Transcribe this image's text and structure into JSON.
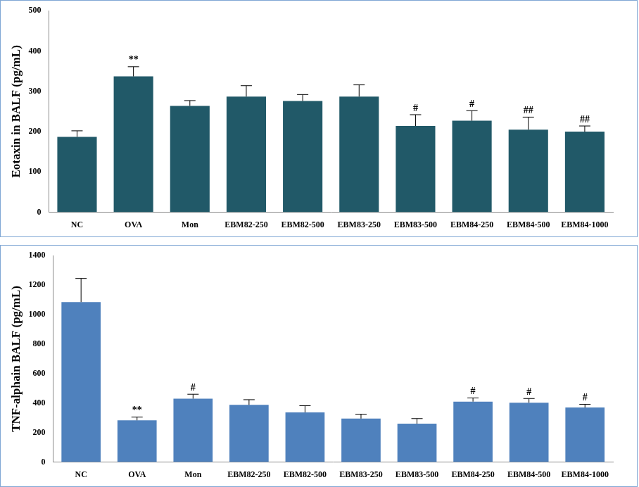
{
  "chart_data": [
    {
      "type": "bar",
      "y_label": "Eotaxin in BALF (pg/mL)",
      "categories": [
        "NC",
        "OVA",
        "Mon",
        "EBM82-250",
        "EBM82-500",
        "EBM83-250",
        "EBM83-500",
        "EBM84-250",
        "EBM84-500",
        "EBM84-1000"
      ],
      "values": [
        187,
        337,
        264,
        287,
        276,
        287,
        214,
        227,
        205,
        200
      ],
      "errors": [
        15,
        24,
        13,
        27,
        16,
        29,
        28,
        25,
        31,
        14
      ],
      "significance": [
        null,
        "**",
        null,
        null,
        null,
        null,
        "#",
        "#",
        "##",
        "##"
      ],
      "color": "#215968",
      "ylim": [
        0,
        500
      ],
      "yticks": [
        0,
        100,
        200,
        300,
        400,
        500
      ],
      "grid": false
    },
    {
      "type": "bar",
      "y_label": "TNF-alphain BALF (pg/mL)",
      "categories": [
        "NC",
        "OVA",
        "Mon",
        "EBM82-250",
        "EBM82-500",
        "EBM83-250",
        "EBM83-500",
        "EBM84-250",
        "EBM84-500",
        "EBM84-1000"
      ],
      "values": [
        1085,
        283,
        430,
        388,
        337,
        295,
        260,
        410,
        403,
        370
      ],
      "errors": [
        160,
        22,
        30,
        35,
        45,
        30,
        35,
        25,
        28,
        22
      ],
      "significance": [
        null,
        "**",
        "#",
        null,
        null,
        null,
        null,
        "#",
        "#",
        "#"
      ],
      "color": "#4f81bd",
      "ylim": [
        0,
        1400
      ],
      "yticks": [
        0,
        200,
        400,
        600,
        800,
        1000,
        1200,
        1400
      ],
      "grid": false
    }
  ]
}
